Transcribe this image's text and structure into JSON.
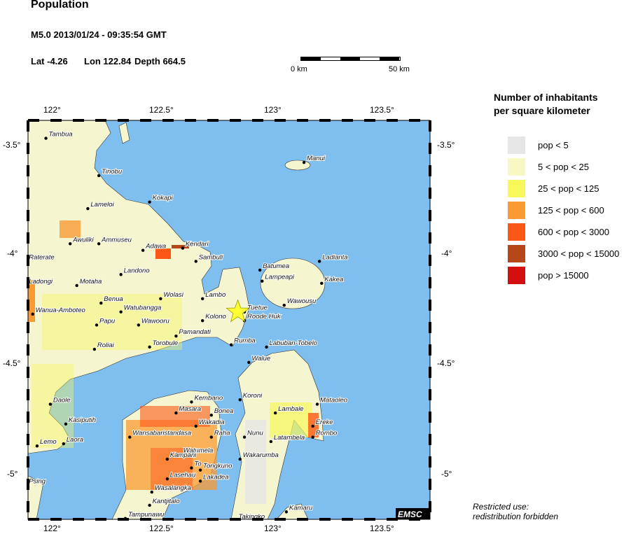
{
  "header": {
    "title": "Population",
    "event": "M5.0  2013/01/24 - 09:35:54 GMT",
    "lat": "Lat -4.26",
    "lon": "Lon 122.84",
    "depth": "Depth 664.5"
  },
  "scale_bar": {
    "left_label": "0 km",
    "right_label": "50 km"
  },
  "map": {
    "lon_ticks": [
      "122°",
      "122.5°",
      "123°",
      "123.5°"
    ],
    "lat_ticks": [
      "-3.5°",
      "-4°",
      "-4.5°",
      "-5°"
    ],
    "epicenter": {
      "lon": 122.84,
      "lat": -4.26
    },
    "colors": {
      "sea": "#7fbff0",
      "land": "#f5f5c8",
      "star": "#ffff33"
    },
    "badge": "EMSC",
    "cities": [
      {
        "name": "Tambua",
        "lon": 121.97,
        "lat": -3.47
      },
      {
        "name": "Tinobu",
        "lon": 122.21,
        "lat": -3.64
      },
      {
        "name": "Kokapi",
        "lon": 122.44,
        "lat": -3.76
      },
      {
        "name": "Lameloi",
        "lon": 122.16,
        "lat": -3.79
      },
      {
        "name": "Awuliki",
        "lon": 122.08,
        "lat": -3.95
      },
      {
        "name": "Ammuseu",
        "lon": 122.21,
        "lat": -3.95
      },
      {
        "name": "Adawa",
        "lon": 122.41,
        "lat": -3.98
      },
      {
        "name": "Kendari",
        "lon": 122.59,
        "lat": -3.97
      },
      {
        "name": "Sambuli",
        "lon": 122.65,
        "lat": -4.03
      },
      {
        "name": "Raterate",
        "lon": 121.88,
        "lat": -4.03
      },
      {
        "name": "Landono",
        "lon": 122.31,
        "lat": -4.09
      },
      {
        "name": "Ladongi",
        "lon": 121.88,
        "lat": -4.14
      },
      {
        "name": "Motaha",
        "lon": 122.11,
        "lat": -4.14
      },
      {
        "name": "Wolasi",
        "lon": 122.49,
        "lat": -4.2
      },
      {
        "name": "Lambo",
        "lon": 122.68,
        "lat": -4.2
      },
      {
        "name": "Benua",
        "lon": 122.22,
        "lat": -4.22
      },
      {
        "name": "Watubangga",
        "lon": 122.31,
        "lat": -4.26
      },
      {
        "name": "Wanua-Amboteo",
        "lon": 121.91,
        "lat": -4.27
      },
      {
        "name": "Papu",
        "lon": 122.2,
        "lat": -4.32
      },
      {
        "name": "Wawooru",
        "lon": 122.39,
        "lat": -4.32
      },
      {
        "name": "Kolono",
        "lon": 122.68,
        "lat": -4.3
      },
      {
        "name": "Tuetue",
        "lon": 122.87,
        "lat": -4.26
      },
      {
        "name": "Roode Huk",
        "lon": 122.87,
        "lat": -4.3
      },
      {
        "name": "Pamandati",
        "lon": 122.56,
        "lat": -4.37
      },
      {
        "name": "Torobule",
        "lon": 122.44,
        "lat": -4.42
      },
      {
        "name": "Roliai",
        "lon": 122.19,
        "lat": -4.43
      },
      {
        "name": "Rumba",
        "lon": 122.81,
        "lat": -4.41
      },
      {
        "name": "Labuban-Tobelo",
        "lon": 122.97,
        "lat": -4.42
      },
      {
        "name": "Walue",
        "lon": 122.89,
        "lat": -4.49
      },
      {
        "name": "Batumea",
        "lon": 122.94,
        "lat": -4.07
      },
      {
        "name": "Lampeapi",
        "lon": 122.95,
        "lat": -4.12
      },
      {
        "name": "Ladianta",
        "lon": 123.21,
        "lat": -4.03
      },
      {
        "name": "Kakea",
        "lon": 123.22,
        "lat": -4.13
      },
      {
        "name": "Wawousu",
        "lon": 123.05,
        "lat": -4.23
      },
      {
        "name": "Manui",
        "lon": 123.14,
        "lat": -3.58
      },
      {
        "name": "Daole",
        "lon": 121.99,
        "lat": -4.68
      },
      {
        "name": "Kasiputih",
        "lon": 122.06,
        "lat": -4.77
      },
      {
        "name": "Lemo",
        "lon": 121.93,
        "lat": -4.87
      },
      {
        "name": "Laora",
        "lon": 122.05,
        "lat": -4.86
      },
      {
        "name": "Kembano",
        "lon": 122.63,
        "lat": -4.67
      },
      {
        "name": "Masara",
        "lon": 122.56,
        "lat": -4.72
      },
      {
        "name": "Bonea",
        "lon": 122.72,
        "lat": -4.73
      },
      {
        "name": "Wakadia",
        "lon": 122.65,
        "lat": -4.78
      },
      {
        "name": "Wansabaristandasa",
        "lon": 122.35,
        "lat": -4.83
      },
      {
        "name": "Raha",
        "lon": 122.72,
        "lat": -4.83
      },
      {
        "name": "Watumela",
        "lon": 122.58,
        "lat": -4.91
      },
      {
        "name": "Kampani",
        "lon": 122.52,
        "lat": -4.93
      },
      {
        "name": "To",
        "lon": 122.63,
        "lat": -4.97
      },
      {
        "name": "Tongkuno",
        "lon": 122.67,
        "lat": -4.98
      },
      {
        "name": "Lasehau",
        "lon": 122.52,
        "lat": -5.02
      },
      {
        "name": "Lakadea",
        "lon": 122.67,
        "lat": -5.03
      },
      {
        "name": "Wasalangka",
        "lon": 122.45,
        "lat": -5.08
      },
      {
        "name": "Kantjitalo",
        "lon": 122.44,
        "lat": -5.14
      },
      {
        "name": "Tampunawu",
        "lon": 122.33,
        "lat": -5.2
      },
      {
        "name": "Koroni",
        "lon": 122.85,
        "lat": -4.66
      },
      {
        "name": "Lambale",
        "lon": 123.01,
        "lat": -4.72
      },
      {
        "name": "Mataoleo",
        "lon": 123.2,
        "lat": -4.68
      },
      {
        "name": "Ereke",
        "lon": 123.18,
        "lat": -4.78
      },
      {
        "name": "Rombo",
        "lon": 123.18,
        "lat": -4.83
      },
      {
        "name": "Nunu",
        "lon": 122.87,
        "lat": -4.83
      },
      {
        "name": "Latambela",
        "lon": 122.99,
        "lat": -4.85
      },
      {
        "name": "Wakarumba",
        "lon": 122.85,
        "lat": -4.93
      },
      {
        "name": "Kamaru",
        "lon": 123.06,
        "lat": -5.17
      },
      {
        "name": "Takingko",
        "lon": 122.83,
        "lat": -5.21
      },
      {
        "name": "Psing",
        "lon": 121.88,
        "lat": -5.05
      }
    ]
  },
  "legend": {
    "title_line1": "Number of inhabitants",
    "title_line2": "per square kilometer",
    "items": [
      {
        "label": "pop < 5",
        "color": "#e6e6e6"
      },
      {
        "label": "5 < pop < 25",
        "color": "#f8f8c4"
      },
      {
        "label": "25 < pop < 125",
        "color": "#f8f85a"
      },
      {
        "label": "125 < pop < 600",
        "color": "#f99a33"
      },
      {
        "label": "600 < pop < 3000",
        "color": "#fb5817"
      },
      {
        "label": "3000 < pop < 15000",
        "color": "#b54718"
      },
      {
        "label": "pop > 15000",
        "color": "#d40f0f"
      }
    ]
  },
  "footer": {
    "line1": "Restricted use:",
    "line2": "redistribution forbidden"
  }
}
